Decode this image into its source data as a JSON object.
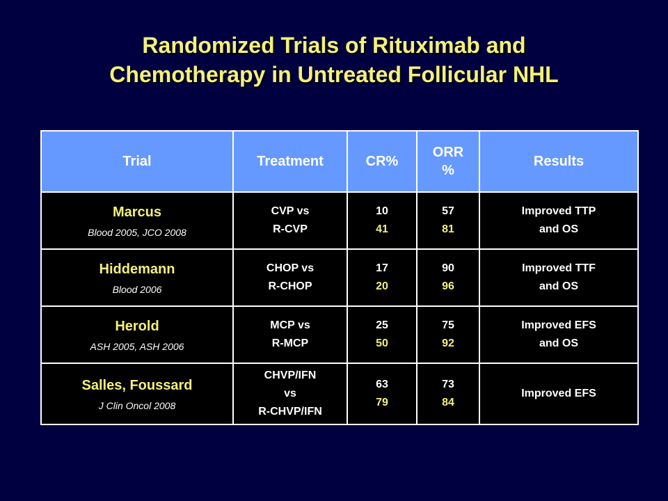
{
  "title": {
    "line1": "Randomized Trials of Rituximab and",
    "line2": "Chemotherapy  in Untreated Follicular NHL"
  },
  "table": {
    "headers": {
      "trial": "Trial",
      "treatment": "Treatment",
      "cr": "CR%",
      "orr": "ORR %",
      "results": "Results"
    },
    "rows": [
      {
        "trial": "Marcus",
        "reference": "Blood 2005, JCO 2008",
        "treatment_a": "CVP vs",
        "treatment_b": "R-CVP",
        "cr_a": "10",
        "cr_b": "41",
        "orr_a": "57",
        "orr_b": "81",
        "results_line1": "Improved TTP",
        "results_line2": "and OS"
      },
      {
        "trial": "Hiddemann",
        "reference": "Blood 2006",
        "treatment_a": "CHOP vs",
        "treatment_b": "R-CHOP",
        "cr_a": "17",
        "cr_b": "20",
        "orr_a": "90",
        "orr_b": "96",
        "results_line1": "Improved TTF",
        "results_line2": "and OS"
      },
      {
        "trial": "Herold",
        "reference": "ASH 2005, ASH 2006",
        "treatment_a": "MCP vs",
        "treatment_b": "R-MCP",
        "cr_a": "25",
        "cr_b": "50",
        "orr_a": "75",
        "orr_b": "92",
        "results_line1": "Improved  EFS",
        "results_line2": "and OS"
      },
      {
        "trial": "Salles, Foussard",
        "reference": "J Clin  Oncol 2008",
        "treatment_a": "CHVP/IFN",
        "treatment_mid": "vs",
        "treatment_b": "R-CHVP/IFN",
        "cr_a": "63",
        "cr_b": "79",
        "orr_a": "73",
        "orr_b": "84",
        "results_line1": "Improved  EFS"
      }
    ]
  },
  "colors": {
    "background": "#000040",
    "title": "#f5f07a",
    "header_fill": "#6699ff",
    "rituximab_values": "#f5f07a"
  }
}
